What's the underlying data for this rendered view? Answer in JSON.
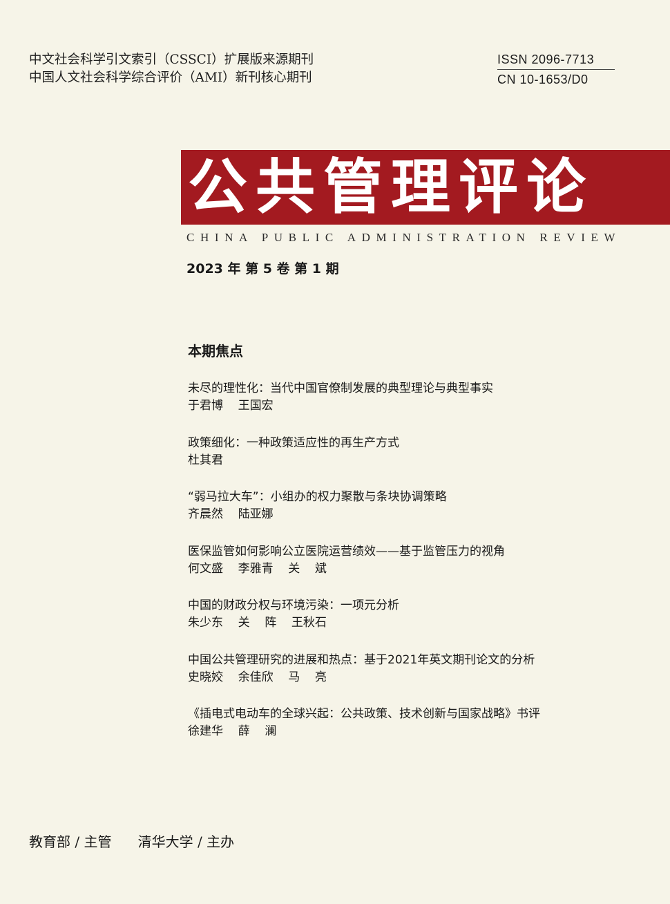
{
  "header": {
    "index_line_1": "中文社会科学引文索引（CSSCI）扩展版来源期刊",
    "index_line_2": "中国人文社会科学综合评价（AMI）新刊核心期刊",
    "issn": "ISSN  2096-7713",
    "cn": "CN  10-1653/D0"
  },
  "masthead": {
    "title": "公共管理评论",
    "title_en": "CHINA PUBLIC ADMINISTRATION REVIEW",
    "title_band_color": "#a31a20"
  },
  "issue": {
    "label": "2023 年  第 5 卷  第 1 期"
  },
  "focus": {
    "heading": "本期焦点",
    "articles": [
      {
        "title": "未尽的理性化：当代中国官僚制发展的典型理论与典型事实",
        "authors": "于君博    王国宏"
      },
      {
        "title": "政策细化：一种政策适应性的再生产方式",
        "authors": "杜其君"
      },
      {
        "title": "“弱马拉大车”：小组办的权力聚散与条块协调策略",
        "authors": "齐晨然    陆亚娜"
      },
      {
        "title": "医保监管如何影响公立医院运营绩效——基于监管压力的视角",
        "authors": "何文盛    李雅青    关    斌"
      },
      {
        "title": "中国的财政分权与环境污染：一项元分析",
        "authors": "朱少东    关    阵    王秋石"
      },
      {
        "title": "中国公共管理研究的进展和热点：基于2021年英文期刊论文的分析",
        "authors": "史晓姣    余佳欣    马    亮"
      },
      {
        "title": "《插电式电动车的全球兴起：公共政策、技术创新与国家战略》书评",
        "authors": "徐建华    薛    澜"
      }
    ]
  },
  "footer": {
    "sponsors": "教育部 / 主管      清华大学 / 主办"
  }
}
